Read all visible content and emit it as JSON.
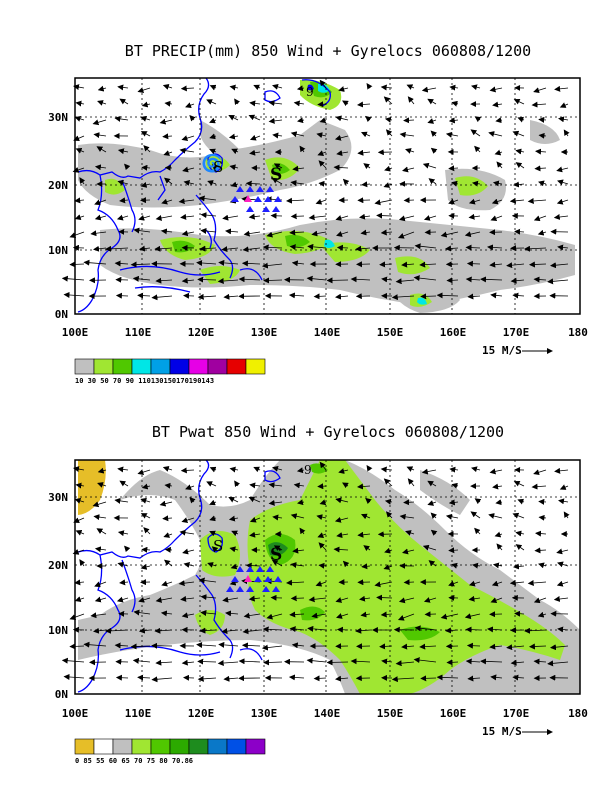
{
  "panels": [
    {
      "id": "precip",
      "title": "BT PRECIP(mm) 850 Wind + Gyrelocs 060808/1200",
      "colorbar": {
        "colors": [
          "#c0c0c0",
          "#a0e632",
          "#50c800",
          "#00e6e6",
          "#00a0e6",
          "#0000e6",
          "#e600e6",
          "#a000a0",
          "#e60000",
          "#f0f000"
        ],
        "labels": "10 30 50 70 90 110130150170190143"
      }
    },
    {
      "id": "pwat",
      "title": "BT Pwat 850 Wind + Gyrelocs 060808/1200",
      "colorbar": {
        "colors": [
          "#e6be28",
          "#ffffff",
          "#c0c0c0",
          "#a0e632",
          "#50c800",
          "#2caa00",
          "#1e8c1e",
          "#0a78c8",
          "#0050e6",
          "#8c00c8"
        ],
        "labels": "0 85 55 60 65 70 75 80 70.86"
      }
    }
  ],
  "axes": {
    "x_ticks": [
      "100E",
      "110E",
      "120E",
      "130E",
      "140E",
      "150E",
      "160E",
      "170E",
      "180"
    ],
    "y_ticks": [
      "0N",
      "10N",
      "20N",
      "30N"
    ],
    "wind_ref_label": "15 M/S"
  },
  "colors": {
    "coast": "#0000ff",
    "grid": "#000000",
    "marker_blue": "#2020ff",
    "marker_magenta": "#ff20c0"
  },
  "icons": {
    "storm_symbol": "tropical-cyclone-icon"
  }
}
